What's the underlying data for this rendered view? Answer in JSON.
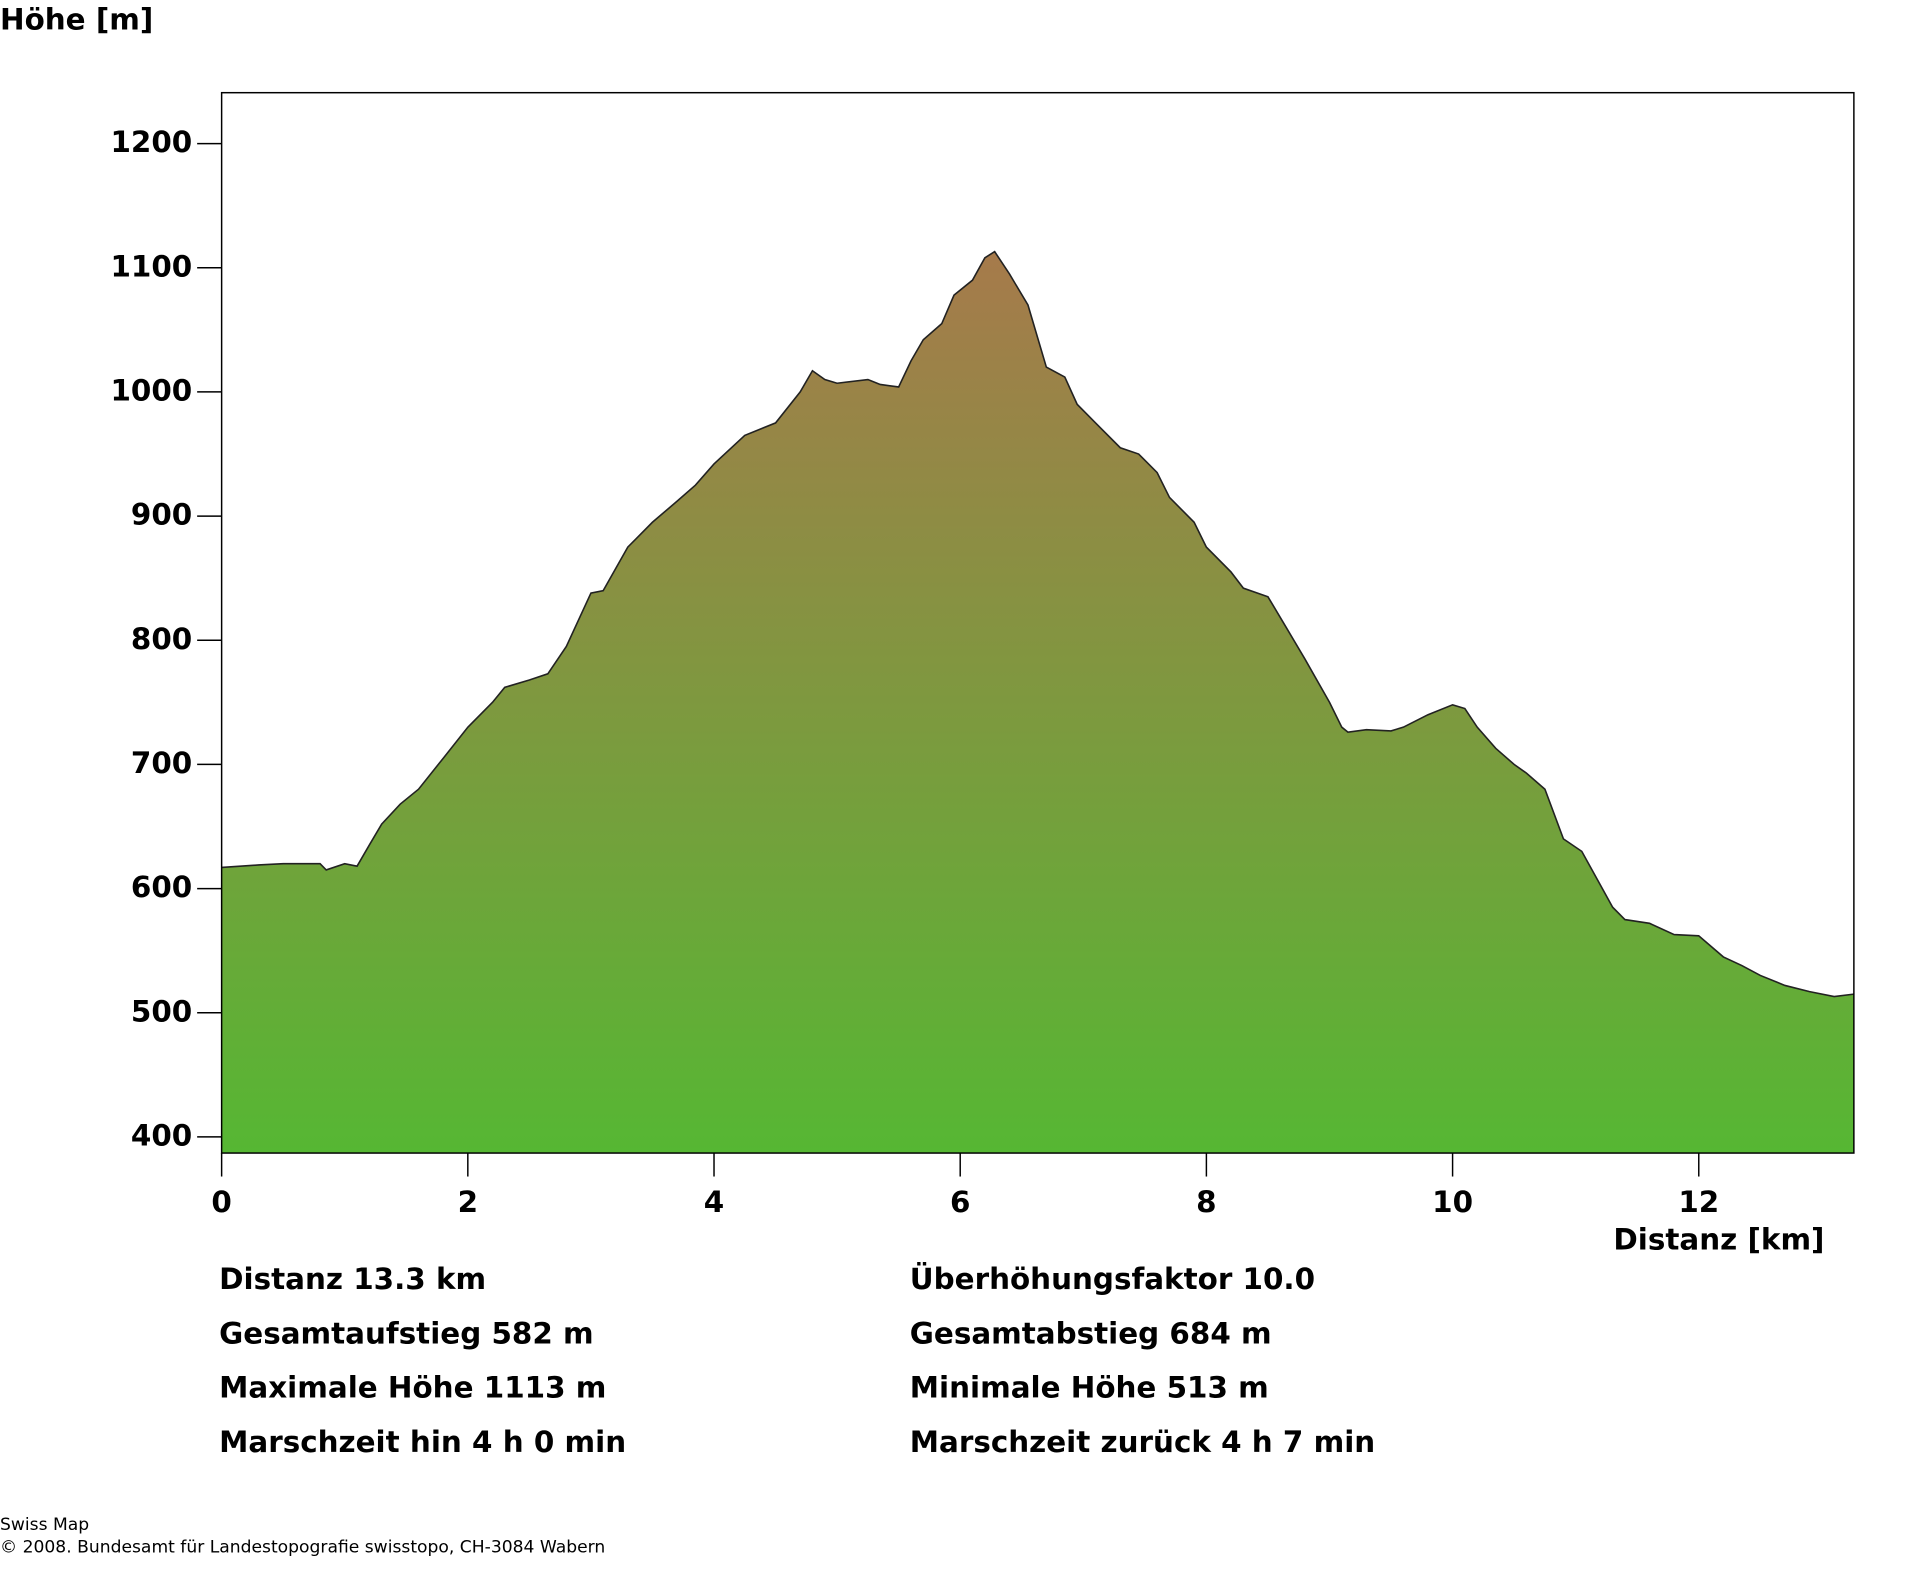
{
  "chart_data": {
    "type": "area",
    "y_label": "Höhe [m]",
    "x_label": "Distanz [km]",
    "x": [
      0,
      0.3,
      0.5,
      0.8,
      0.85,
      1.0,
      1.1,
      1.2,
      1.3,
      1.45,
      1.6,
      1.8,
      2.0,
      2.2,
      2.3,
      2.5,
      2.65,
      2.8,
      3.0,
      3.1,
      3.3,
      3.5,
      3.7,
      3.85,
      4.0,
      4.25,
      4.5,
      4.7,
      4.8,
      4.9,
      5.0,
      5.25,
      5.35,
      5.5,
      5.6,
      5.7,
      5.85,
      5.95,
      6.1,
      6.2,
      6.28,
      6.4,
      6.55,
      6.7,
      6.85,
      6.95,
      7.1,
      7.3,
      7.45,
      7.6,
      7.7,
      7.9,
      8.0,
      8.2,
      8.3,
      8.5,
      8.65,
      8.8,
      9.0,
      9.1,
      9.15,
      9.3,
      9.5,
      9.6,
      9.8,
      10.0,
      10.1,
      10.2,
      10.35,
      10.5,
      10.6,
      10.75,
      10.9,
      11.05,
      11.3,
      11.4,
      11.6,
      11.8,
      12.0,
      12.2,
      12.35,
      12.5,
      12.7,
      12.9,
      13.1,
      13.26
    ],
    "values": [
      617,
      619,
      620,
      620,
      615,
      620,
      618,
      635,
      652,
      668,
      680,
      705,
      730,
      750,
      762,
      768,
      773,
      795,
      838,
      840,
      875,
      895,
      912,
      925,
      942,
      965,
      975,
      1000,
      1017,
      1010,
      1007,
      1010,
      1006,
      1004,
      1025,
      1042,
      1055,
      1078,
      1090,
      1108,
      1113,
      1095,
      1070,
      1020,
      1012,
      990,
      975,
      955,
      950,
      935,
      915,
      895,
      875,
      855,
      842,
      835,
      810,
      785,
      750,
      730,
      726,
      728,
      727,
      730,
      740,
      748,
      745,
      730,
      713,
      700,
      693,
      680,
      640,
      630,
      585,
      575,
      572,
      563,
      562,
      545,
      538,
      530,
      522,
      517,
      513,
      515
    ],
    "xlim": [
      0,
      13.26
    ],
    "ylim": [
      387,
      1241
    ],
    "xticks": [
      0,
      2,
      4,
      6,
      8,
      10,
      12
    ],
    "yticks": [
      400,
      500,
      600,
      700,
      800,
      900,
      1000,
      1100,
      1200
    ],
    "gradient": [
      "#a67a4b",
      "#56b733"
    ],
    "line_color": "#222222",
    "annotations": [
      "Distanz 13.3 km",
      "Überhöhungsfaktor 10.0",
      "Gesamtaufstieg  582 m",
      "Gesamtabstieg  684 m",
      "Maximale Höhe  1113 m",
      "Minimale Höhe  513 m",
      "Marschzeit hin  4 h 0 min",
      "Marschzeit zurück  4 h 7 min"
    ],
    "credits": [
      "Swiss Map",
      "© 2008. Bundesamt für Landestopografie swisstopo, CH-3084 Wabern"
    ]
  }
}
